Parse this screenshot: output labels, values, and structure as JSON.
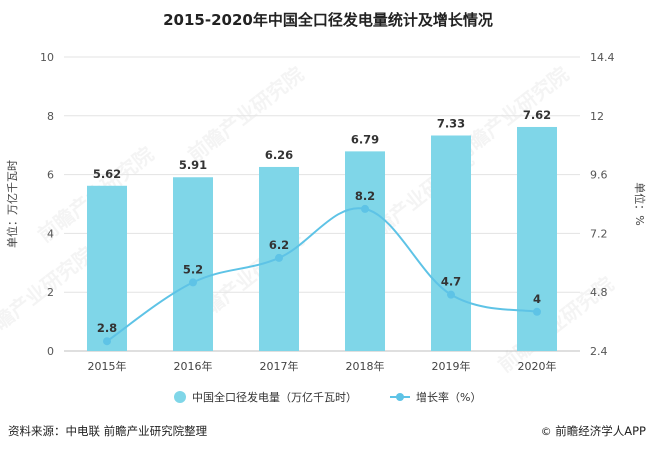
{
  "title": "2015-2020年中国全口径发电量统计及增长情况",
  "footer": {
    "source": "资料来源：中电联 前瞻产业研究院整理",
    "copyright_symbol": "©",
    "brand": "前瞻经济学人APP"
  },
  "watermark": "前瞻产业研究院",
  "chart_data": {
    "type": "bar+line",
    "categories": [
      "2015年",
      "2016年",
      "2017年",
      "2018年",
      "2019年",
      "2020年"
    ],
    "series": [
      {
        "name": "中国全口径发电量（万亿千瓦时）",
        "type": "bar",
        "axis": "left",
        "values": [
          5.62,
          5.91,
          6.26,
          6.79,
          7.33,
          7.62
        ],
        "color": "#7fd6e8"
      },
      {
        "name": "增长率（%）",
        "type": "line",
        "axis": "right",
        "values": [
          2.8,
          5.2,
          6.2,
          8.2,
          4.7,
          4
        ],
        "color": "#5ec3e6"
      }
    ],
    "ylabel": "单位：万亿千瓦时",
    "y2label": "单位：%",
    "ylim": [
      0,
      10
    ],
    "yticks": [
      "0",
      "2",
      "4",
      "6",
      "8",
      "10"
    ],
    "y2lim": [
      2.4,
      14.4
    ],
    "y2ticks": [
      "2.4",
      "4.8",
      "7.2",
      "9.6",
      "12",
      "14.4"
    ],
    "bar_labels": [
      "5.62",
      "5.91",
      "6.26",
      "6.79",
      "7.33",
      "7.62"
    ],
    "line_labels": [
      "2.8",
      "5.2",
      "6.2",
      "8.2",
      "4.7",
      "4"
    ],
    "grid": true,
    "legend_position": "bottom"
  }
}
